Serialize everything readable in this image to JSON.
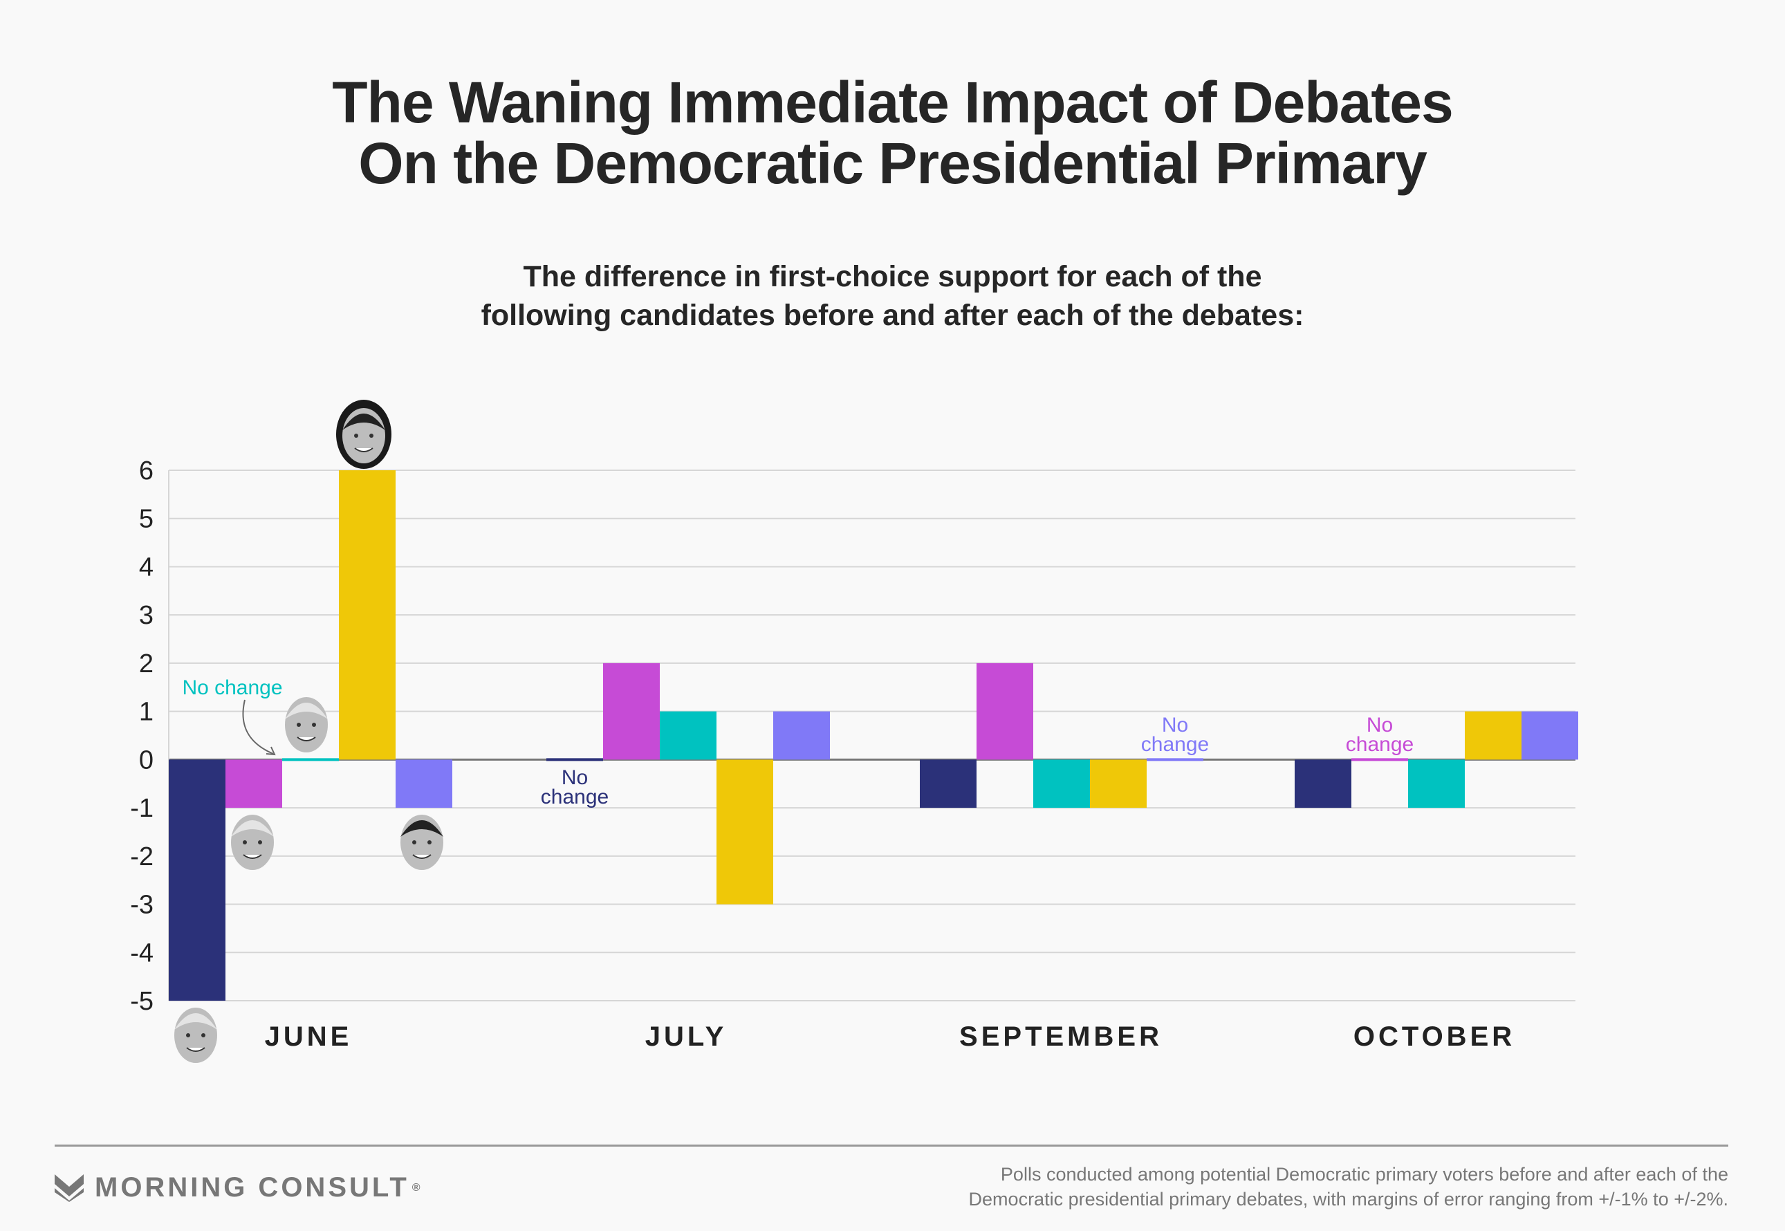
{
  "title": [
    "The Waning Immediate Impact of Debates",
    "On the Democratic Presidential Primary"
  ],
  "subtitle": [
    "The difference in first-choice support for each of the",
    "following candidates before and after each of the debates:"
  ],
  "chart_data": {
    "type": "bar",
    "categories": [
      "JUNE",
      "JULY",
      "SEPTEMBER",
      "OCTOBER"
    ],
    "series": [
      {
        "color": "#2b3179",
        "values": [
          -5,
          0,
          -1,
          -1
        ]
      },
      {
        "color": "#c64bd6",
        "values": [
          -1,
          2,
          2,
          0
        ]
      },
      {
        "color": "#00c2c0",
        "values": [
          0,
          1,
          -1,
          -1
        ]
      },
      {
        "color": "#efc808",
        "values": [
          6,
          -3,
          -1,
          1
        ]
      },
      {
        "color": "#8079f7",
        "values": [
          -1,
          1,
          0,
          1
        ]
      }
    ],
    "ylim": [
      -5,
      6
    ],
    "yticks": [
      "6",
      "5",
      "4",
      "3",
      "2",
      "1",
      "0",
      "-1",
      "-2",
      "-3",
      "-4",
      "-5"
    ],
    "grid": true,
    "annotations": [
      {
        "text": "No change",
        "month": 0,
        "series": 2,
        "color": "#00c2c0"
      },
      {
        "text": "No change",
        "month": 1,
        "series": 0,
        "color": "#2b3179"
      },
      {
        "text": "No change",
        "month": 2,
        "series": 4,
        "color": "#8079f7"
      },
      {
        "text": "No change",
        "month": 3,
        "series": 1,
        "color": "#c64bd6"
      }
    ],
    "headshots": [
      "biden",
      "warren",
      "sanders",
      "harris",
      "buttigieg"
    ]
  },
  "footer": {
    "logo": "MORNING CONSULT",
    "note": [
      "Polls conducted among potential Democratic primary voters before and after each of the",
      "Democratic presidential primary debates, with margins of error ranging from +/-1% to +/-2%."
    ]
  }
}
